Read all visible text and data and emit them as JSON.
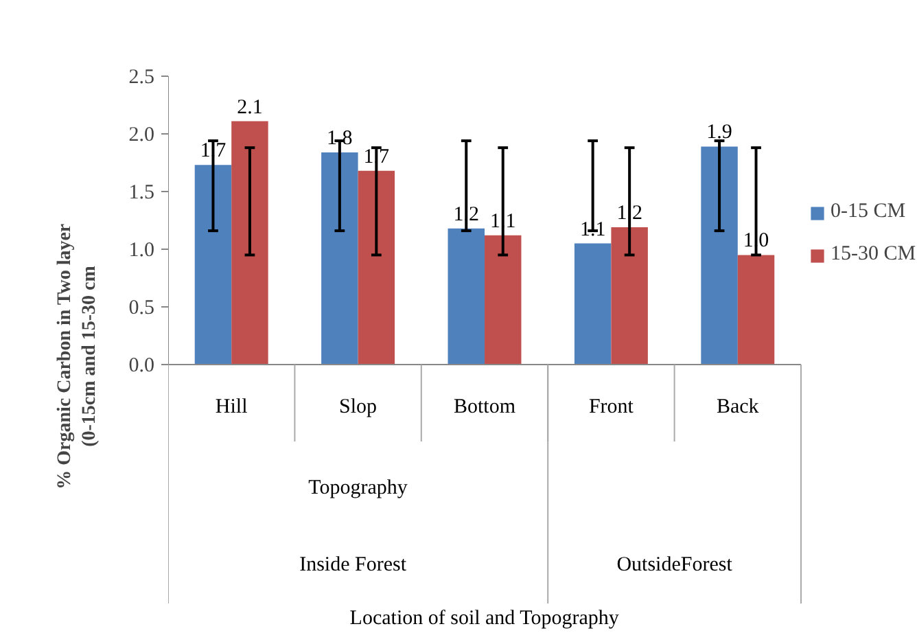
{
  "chart_data": {
    "type": "bar",
    "ylabel": "% Organic Carbon in Two layer\n(0-15cm and 15-30 cm",
    "categories": [
      "Hill",
      "Slop",
      "Bottom",
      "Front",
      "Back"
    ],
    "series": [
      {
        "name": "0-15 CM",
        "color": "#4f81bd",
        "values": [
          1.73,
          1.84,
          1.18,
          1.05,
          1.89
        ],
        "errors": [
          [
            1.16,
            1.94
          ],
          [
            1.16,
            1.94
          ],
          [
            1.16,
            1.94
          ],
          [
            1.16,
            1.94
          ],
          [
            1.16,
            1.94
          ]
        ],
        "value_labels": [
          "1.7",
          "1.8",
          "1.2",
          "1.1",
          "1.9"
        ]
      },
      {
        "name": "15-30 CM",
        "color": "#c0504d",
        "values": [
          2.11,
          1.68,
          1.12,
          1.19,
          0.95
        ],
        "errors": [
          [
            0.95,
            1.88
          ],
          [
            0.95,
            1.88
          ],
          [
            0.95,
            1.88
          ],
          [
            0.95,
            1.88
          ],
          [
            0.95,
            1.88
          ]
        ],
        "value_labels": [
          "2.1",
          "1.7",
          "1.1",
          "1.2",
          "1.0"
        ]
      }
    ],
    "annotations": [
      "Topography",
      "Inside   Forest",
      "OutsideForest",
      "Location of soil and Topography"
    ],
    "ylim": [
      0,
      2.5
    ],
    "yticks": [
      {
        "value": 0,
        "label": "0.0"
      },
      {
        "value": 0.5,
        "label": "0.5"
      },
      {
        "value": 1,
        "label": "1.0"
      },
      {
        "value": 1.5,
        "label": "1.5"
      },
      {
        "value": 2,
        "label": "2.0"
      },
      {
        "value": 2.5,
        "label": "2.5"
      }
    ],
    "grid": false,
    "legend": "right"
  }
}
